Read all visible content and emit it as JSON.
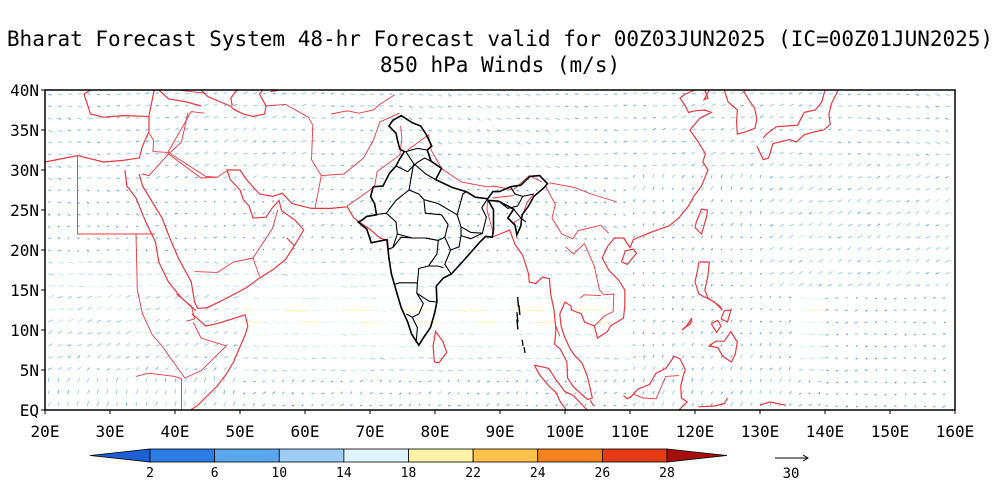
{
  "title": {
    "line1": "Bharat Forecast System 48-hr Forecast valid for 00Z03JUN2025 (IC=00Z01JUN2025)",
    "line2": "850 hPa Winds (m/s)"
  },
  "axes": {
    "lat_labels": [
      "EQ",
      "5N",
      "10N",
      "15N",
      "20N",
      "25N",
      "30N",
      "35N",
      "40N"
    ],
    "lon_labels": [
      "20E",
      "30E",
      "40E",
      "50E",
      "60E",
      "70E",
      "80E",
      "90E",
      "100E",
      "110E",
      "120E",
      "130E",
      "140E",
      "150E",
      "160E"
    ],
    "lon_range": [
      20,
      160
    ],
    "lat_range": [
      0,
      40
    ]
  },
  "colorbar": {
    "labels": [
      "2",
      "6",
      "10",
      "14",
      "18",
      "22",
      "24",
      "26",
      "28"
    ],
    "colors": [
      "#1e5fd6",
      "#2c7ee6",
      "#5aa6f0",
      "#9dcdf6",
      "#dff4fb",
      "#fff3a8",
      "#fdc24a",
      "#f8821e",
      "#e43b12",
      "#a60e0e"
    ]
  },
  "reference_vector": {
    "label": "30"
  },
  "map_colors": {
    "coastline": "#e8383d",
    "india_border": "#000000"
  }
}
